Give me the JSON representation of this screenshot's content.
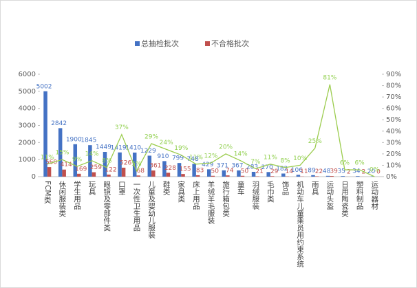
{
  "chart_data": {
    "type": "bar",
    "categories": [
      "FCM类",
      "休闲服装类",
      "学生用品",
      "玩具",
      "眼镜及零部件类",
      "口罩",
      "一次性卫生用品",
      "儿童及婴幼儿服装",
      "鞋类",
      "家具类",
      "床上用品",
      "羊绒羊毛服装",
      "旅行箱包类",
      "童车",
      "羽绒服装",
      "毛巾类",
      "饰品",
      "机动车儿童乘员用约束系统",
      "雨具",
      "运动头盔",
      "日用陶瓷类",
      "塑料制品",
      "运动器材"
    ],
    "series": [
      {
        "name": "总抽检批次",
        "color": "#4472c4",
        "values": [
          5002,
          2842,
          1900,
          1845,
          1449,
          1419,
          1410,
          1229,
          910,
          799,
          748,
          429,
          371,
          367,
          283,
          270,
          182,
          106,
          89,
          48,
          35,
          34,
          20
        ]
      },
      {
        "name": "不合格批次",
        "color": "#c0504d",
        "values": [
          560,
          414,
          169,
          259,
          122,
          526,
          68,
          361,
          228,
          155,
          83,
          50,
          74,
          50,
          21,
          29,
          14,
          11,
          22,
          39,
          2,
          2,
          0
        ]
      }
    ],
    "line": {
      "type": "line",
      "axis": "y2",
      "color": "#9bcc4d",
      "values": [
        11,
        15,
        9,
        14,
        8,
        37,
        5,
        29,
        24,
        19,
        11,
        12,
        20,
        14,
        7,
        11,
        8,
        10,
        25,
        81,
        6,
        6,
        0
      ],
      "value_labels": [
        "11%",
        "15%",
        "9%",
        "14%",
        "8%",
        "37%",
        "5%",
        "29%",
        "24%",
        "19%",
        "11%",
        "12%",
        "20%",
        "14%",
        "7%",
        "11%",
        "8%",
        "10%",
        "25%",
        "81%",
        "6%",
        "6%",
        "0%"
      ]
    },
    "ylim": [
      0,
      6000
    ],
    "yticks": [
      0,
      1000,
      2000,
      3000,
      4000,
      5000,
      6000
    ],
    "y2lim": [
      0,
      90
    ],
    "y2ticks": [
      {
        "value": 0,
        "label": "0%"
      },
      {
        "value": 10,
        "label": "10%"
      },
      {
        "value": 20,
        "label": "20%"
      },
      {
        "value": 30,
        "label": "30%"
      },
      {
        "value": 40,
        "label": "40%"
      },
      {
        "value": 50,
        "label": "50%"
      },
      {
        "value": 60,
        "label": "60%"
      },
      {
        "value": 70,
        "label": "70%"
      },
      {
        "value": 80,
        "label": "80%"
      },
      {
        "value": 90,
        "label": "90%"
      }
    ],
    "legend": "top"
  }
}
